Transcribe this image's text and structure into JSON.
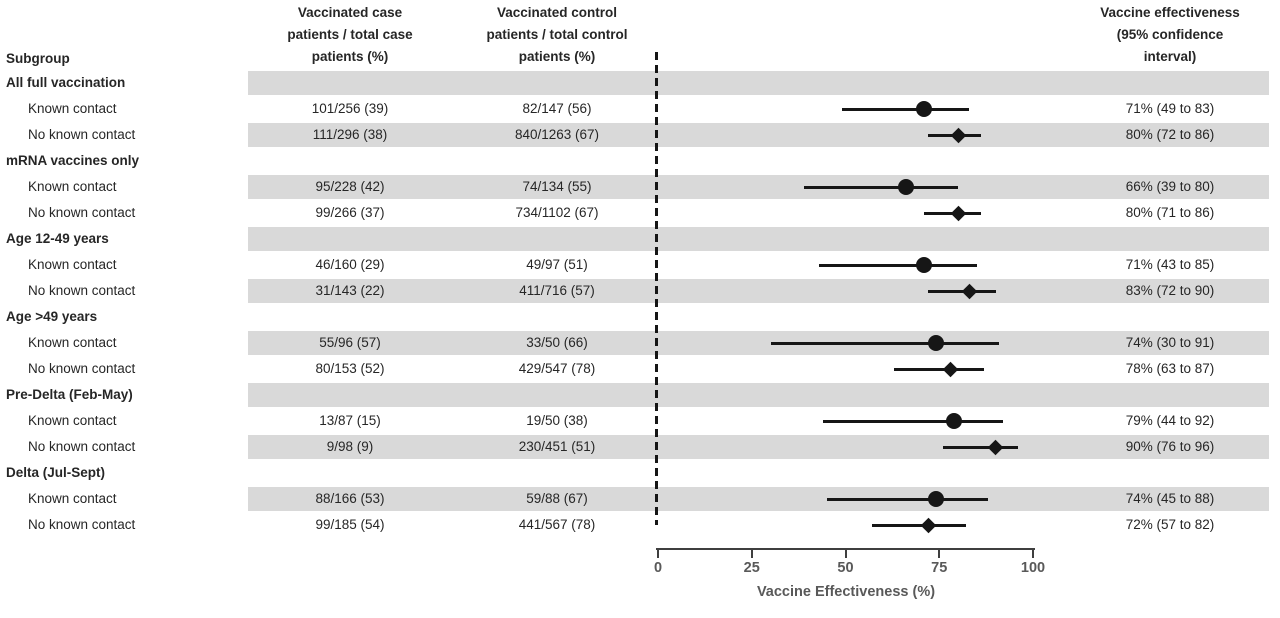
{
  "chart_data": {
    "type": "forest",
    "columns": {
      "subgroup": "Subgroup",
      "case": "Vaccinated case\npatients / total case\npatients (%)",
      "control": "Vaccinated control\npatients / total control\npatients (%)",
      "effectiveness": "Vaccine effectiveness\n(95% confidence\ninterval)"
    },
    "axis": {
      "label": "Vaccine Effectiveness (%)",
      "min": 0,
      "max": 100,
      "ticks": [
        0,
        25,
        50,
        75,
        100
      ]
    },
    "colors": {
      "band": "#d9d9d9",
      "ink": "#161616",
      "axis_text": "#595959"
    },
    "rows": [
      {
        "kind": "group",
        "label": "All full vaccination",
        "shaded": true
      },
      {
        "kind": "item",
        "label": "Known contact",
        "case": "101/256 (39)",
        "control": "82/147 (56)",
        "estimate": 71,
        "ci_low": 49,
        "ci_high": 83,
        "ve_label": "71% (49 to 83)",
        "marker": "circle",
        "shaded": false
      },
      {
        "kind": "item",
        "label": "No known contact",
        "case": "111/296 (38)",
        "control": "840/1263 (67)",
        "estimate": 80,
        "ci_low": 72,
        "ci_high": 86,
        "ve_label": "80% (72 to 86)",
        "marker": "diamond",
        "shaded": true
      },
      {
        "kind": "group",
        "label": "mRNA vaccines only",
        "shaded": false
      },
      {
        "kind": "item",
        "label": "Known contact",
        "case": "95/228 (42)",
        "control": "74/134 (55)",
        "estimate": 66,
        "ci_low": 39,
        "ci_high": 80,
        "ve_label": "66% (39 to 80)",
        "marker": "circle",
        "shaded": true
      },
      {
        "kind": "item",
        "label": "No known contact",
        "case": "99/266 (37)",
        "control": "734/1102 (67)",
        "estimate": 80,
        "ci_low": 71,
        "ci_high": 86,
        "ve_label": "80% (71 to 86)",
        "marker": "diamond",
        "shaded": false
      },
      {
        "kind": "group",
        "label": "Age 12-49 years",
        "shaded": true
      },
      {
        "kind": "item",
        "label": "Known contact",
        "case": "46/160 (29)",
        "control": "49/97 (51)",
        "estimate": 71,
        "ci_low": 43,
        "ci_high": 85,
        "ve_label": "71% (43 to 85)",
        "marker": "circle",
        "shaded": false
      },
      {
        "kind": "item",
        "label": "No known contact",
        "case": "31/143 (22)",
        "control": "411/716 (57)",
        "estimate": 83,
        "ci_low": 72,
        "ci_high": 90,
        "ve_label": "83% (72 to 90)",
        "marker": "diamond",
        "shaded": true
      },
      {
        "kind": "group",
        "label": "Age >49 years",
        "shaded": false
      },
      {
        "kind": "item",
        "label": "Known contact",
        "case": "55/96 (57)",
        "control": "33/50 (66)",
        "estimate": 74,
        "ci_low": 30,
        "ci_high": 91,
        "ve_label": "74% (30 to 91)",
        "marker": "circle",
        "shaded": true
      },
      {
        "kind": "item",
        "label": "No known contact",
        "case": "80/153 (52)",
        "control": "429/547 (78)",
        "estimate": 78,
        "ci_low": 63,
        "ci_high": 87,
        "ve_label": "78% (63 to 87)",
        "marker": "diamond",
        "shaded": false
      },
      {
        "kind": "group",
        "label": "Pre-Delta (Feb-May)",
        "shaded": true
      },
      {
        "kind": "item",
        "label": "Known contact",
        "case": "13/87 (15)",
        "control": "19/50 (38)",
        "estimate": 79,
        "ci_low": 44,
        "ci_high": 92,
        "ve_label": "79% (44 to 92)",
        "marker": "circle",
        "shaded": false
      },
      {
        "kind": "item",
        "label": "No known contact",
        "case": "9/98 (9)",
        "control": "230/451 (51)",
        "estimate": 90,
        "ci_low": 76,
        "ci_high": 96,
        "ve_label": "90% (76 to 96)",
        "marker": "diamond",
        "shaded": true
      },
      {
        "kind": "group",
        "label": "Delta (Jul-Sept)",
        "shaded": false
      },
      {
        "kind": "item",
        "label": "Known contact",
        "case": "88/166 (53)",
        "control": "59/88 (67)",
        "estimate": 74,
        "ci_low": 45,
        "ci_high": 88,
        "ve_label": "74% (45 to 88)",
        "marker": "circle",
        "shaded": true
      },
      {
        "kind": "item",
        "label": "No known contact",
        "case": "99/185 (54)",
        "control": "441/567 (78)",
        "estimate": 72,
        "ci_low": 57,
        "ci_high": 82,
        "ve_label": "72% (57 to 82)",
        "marker": "diamond",
        "shaded": false
      }
    ]
  }
}
